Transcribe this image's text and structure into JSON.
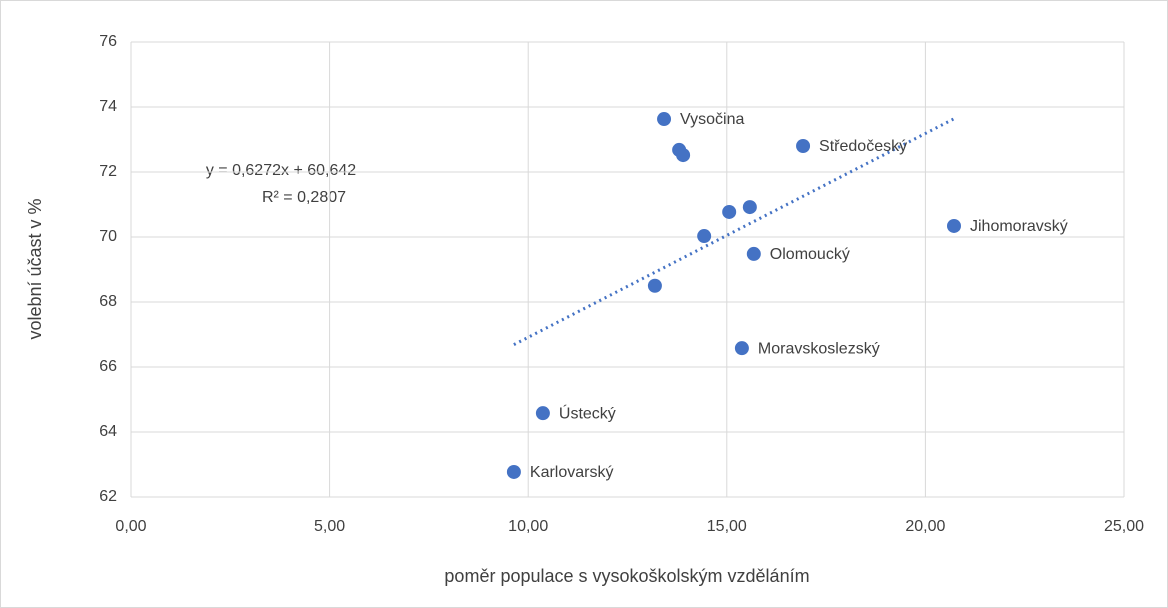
{
  "chart_data": {
    "type": "scatter",
    "x_label": "poměr populace s vysokoškolským vzděláním",
    "y_label": "volební účast v %",
    "color": "#4472c4",
    "grid": true,
    "x": [
      13.42,
      13.8,
      13.9,
      16.92,
      20.72,
      15.06,
      15.58,
      14.43,
      15.68,
      13.19,
      15.38,
      10.37,
      9.64
    ],
    "values": [
      73.63,
      72.68,
      72.52,
      72.8,
      70.34,
      70.77,
      70.92,
      70.03,
      69.48,
      68.5,
      66.58,
      64.58,
      62.77
    ],
    "point_labels": [
      "Vysočina",
      null,
      null,
      "Středočeský",
      "Jihomoravský",
      null,
      null,
      null,
      "Olomoucký",
      null,
      "Moravskoslezský",
      "Ústecký",
      "Karlovarský"
    ],
    "trendline": {
      "x": [
        9.64,
        20.72
      ],
      "slope": 0.6272,
      "intercept": 60.642,
      "equation": "y = 0,6272x + 60,642",
      "r_squared": "R² = 0,2807"
    },
    "xlim": [
      0,
      25
    ],
    "xticks": [
      {
        "value": 0,
        "label": "0,00"
      },
      {
        "value": 5,
        "label": "5,00"
      },
      {
        "value": 10,
        "label": "10,00"
      },
      {
        "value": 15,
        "label": "15,00"
      },
      {
        "value": 20,
        "label": "20,00"
      },
      {
        "value": 25,
        "label": "25,00"
      }
    ],
    "ylim": [
      62,
      76
    ],
    "yticks": [
      62,
      64,
      66,
      68,
      70,
      72,
      74,
      76
    ]
  }
}
